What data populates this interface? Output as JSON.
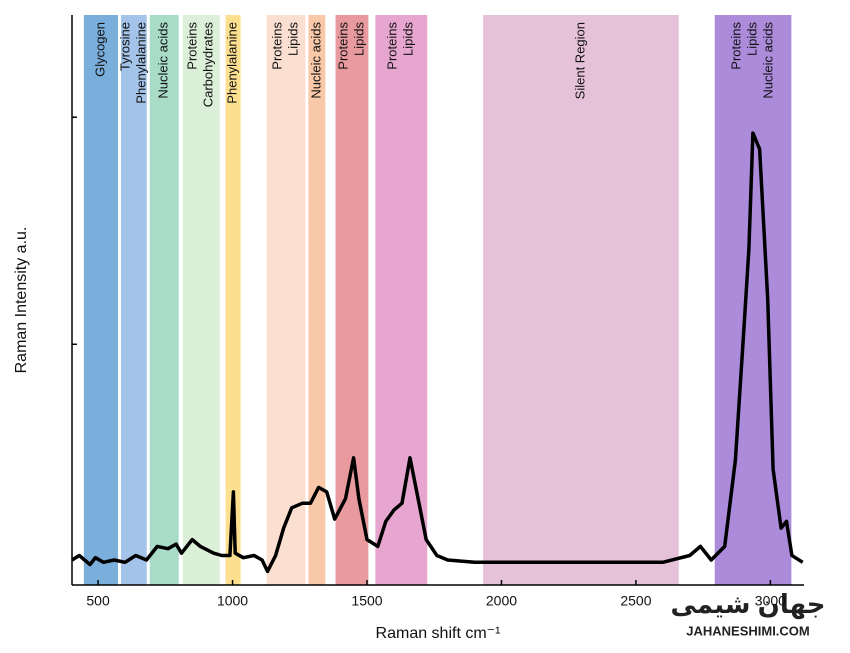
{
  "chart_data": {
    "type": "line",
    "xlabel": "Raman shift cm⁻¹",
    "ylabel": "Raman Intensity a.u.",
    "xlim": [
      403,
      3125
    ],
    "ylim": [
      -0.06,
      2.45
    ],
    "xticks": [
      500,
      1000,
      1500,
      2000,
      2500,
      3000
    ],
    "yticks": [
      1,
      2
    ],
    "color": "#000000",
    "regions": [
      {
        "start": 447,
        "end": 574,
        "color": "#7aaedb",
        "labels": [
          "Glycogen"
        ]
      },
      {
        "start": 585,
        "end": 681,
        "color": "#a3c3e8",
        "labels": [
          "Tyrosine",
          "Phenylalanine"
        ]
      },
      {
        "start": 692,
        "end": 800,
        "color": "#a8dcc8",
        "labels": [
          "Nucleic acids"
        ]
      },
      {
        "start": 815,
        "end": 952,
        "color": "#dcefd8",
        "labels": [
          "Proteins",
          "Carbohydrates"
        ]
      },
      {
        "start": 974,
        "end": 1030,
        "color": "#fde08f",
        "labels": [
          "Phenylalanine"
        ]
      },
      {
        "start": 1127,
        "end": 1271,
        "color": "#fbe0d2",
        "labels": [
          "Proteins",
          "Lipids"
        ]
      },
      {
        "start": 1282,
        "end": 1345,
        "color": "#f8c8a8",
        "labels": [
          "Nucleic acids"
        ]
      },
      {
        "start": 1383,
        "end": 1505,
        "color": "#e89a9e",
        "labels": [
          "Proteins",
          "Lipids"
        ]
      },
      {
        "start": 1531,
        "end": 1724,
        "color": "#e6a6cf",
        "labels": [
          "Proteins",
          "Lipids"
        ]
      },
      {
        "start": 1932,
        "end": 2659,
        "color": "#e6c2da",
        "labels": [
          "Silent Region"
        ]
      },
      {
        "start": 2793,
        "end": 3078,
        "color": "#ac8bdb",
        "labels": [
          "Proteins",
          "Lipids",
          "Nucleic acids"
        ]
      }
    ],
    "x": [
      403,
      430,
      470,
      490,
      520,
      560,
      600,
      640,
      680,
      720,
      760,
      790,
      810,
      850,
      880,
      930,
      960,
      990,
      1003,
      1010,
      1040,
      1080,
      1110,
      1130,
      1160,
      1190,
      1220,
      1260,
      1290,
      1320,
      1350,
      1380,
      1420,
      1450,
      1470,
      1500,
      1540,
      1570,
      1600,
      1630,
      1660,
      1690,
      1720,
      1760,
      1800,
      1900,
      2000,
      2200,
      2400,
      2600,
      2700,
      2740,
      2780,
      2830,
      2870,
      2900,
      2920,
      2935,
      2960,
      2990,
      3010,
      3040,
      3060,
      3080,
      3120
    ],
    "values": [
      0.05,
      0.07,
      0.03,
      0.06,
      0.04,
      0.05,
      0.04,
      0.07,
      0.05,
      0.11,
      0.1,
      0.12,
      0.08,
      0.14,
      0.11,
      0.08,
      0.07,
      0.07,
      0.35,
      0.08,
      0.06,
      0.07,
      0.05,
      0.0,
      0.07,
      0.19,
      0.28,
      0.3,
      0.3,
      0.37,
      0.35,
      0.23,
      0.32,
      0.5,
      0.32,
      0.14,
      0.11,
      0.22,
      0.27,
      0.3,
      0.5,
      0.32,
      0.14,
      0.07,
      0.05,
      0.04,
      0.04,
      0.04,
      0.04,
      0.04,
      0.07,
      0.11,
      0.05,
      0.11,
      0.49,
      1.04,
      1.42,
      1.93,
      1.86,
      1.2,
      0.45,
      0.19,
      0.22,
      0.07,
      0.04
    ]
  },
  "watermark": {
    "name": "جهان شیمی",
    "site": "JAHANESHIMI.COM"
  }
}
